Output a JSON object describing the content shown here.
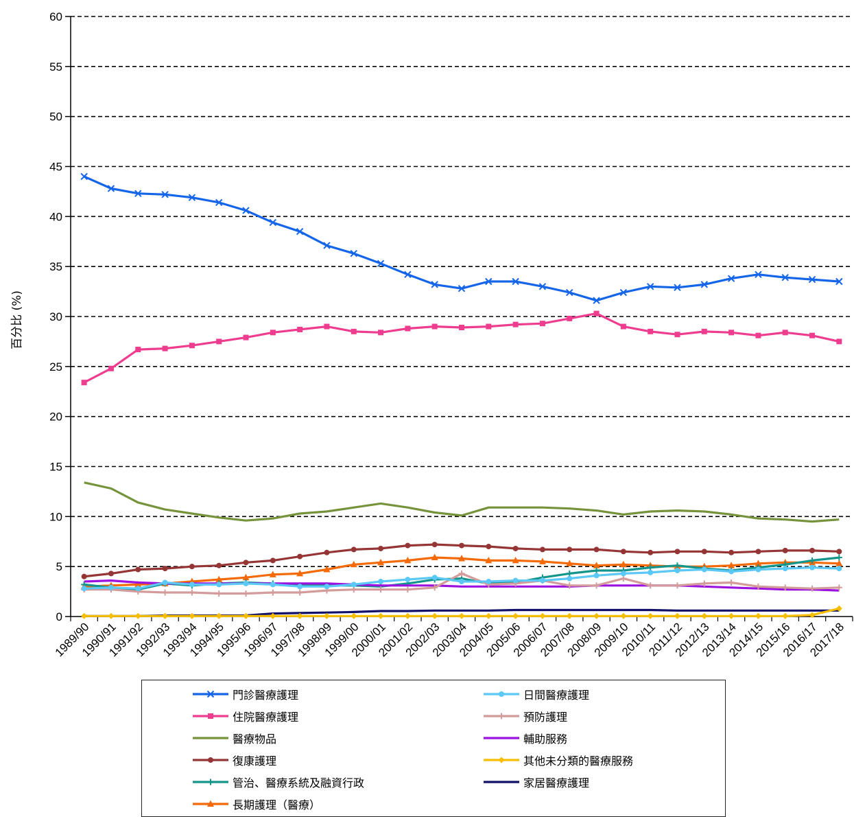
{
  "chart_data": {
    "type": "line",
    "ylabel": "百分比 (%)",
    "xlabel": "",
    "ylim": [
      0,
      60
    ],
    "yticks": [
      0,
      5,
      10,
      15,
      20,
      25,
      30,
      35,
      40,
      45,
      50,
      55,
      60
    ],
    "grid": "horizontal dashed",
    "legend_position": "bottom",
    "categories": [
      "1989/90",
      "1990/91",
      "1991/92",
      "1992/93",
      "1993/94",
      "1994/95",
      "1995/96",
      "1996/97",
      "1997/98",
      "1998/99",
      "1999/00",
      "2000/01",
      "2001/02",
      "2002/03",
      "2003/04",
      "2004/05",
      "2005/06",
      "2006/07",
      "2007/08",
      "2008/09",
      "2009/10",
      "2010/11",
      "2011/12",
      "2012/13",
      "2013/14",
      "2014/15",
      "2015/16",
      "2016/17",
      "2017/18"
    ],
    "series": [
      {
        "name": "門診醫療護理",
        "color": "#1565e8",
        "marker": "x",
        "values": [
          44.0,
          42.8,
          42.3,
          42.2,
          41.9,
          41.4,
          40.6,
          39.4,
          38.5,
          37.1,
          36.3,
          35.3,
          34.2,
          33.2,
          32.8,
          33.5,
          33.5,
          33.0,
          32.4,
          31.6,
          32.4,
          33.0,
          32.9,
          33.2,
          33.8,
          34.2,
          33.9,
          33.7,
          33.5
        ]
      },
      {
        "name": "日間醫療護理",
        "color": "#5bc8f5",
        "marker": "circle",
        "values": [
          2.8,
          2.9,
          2.8,
          3.4,
          3.2,
          3.2,
          3.3,
          3.2,
          3.0,
          3.0,
          3.2,
          3.5,
          3.7,
          3.9,
          3.5,
          3.5,
          3.6,
          3.6,
          3.8,
          4.1,
          4.3,
          4.4,
          4.6,
          4.7,
          4.5,
          4.7,
          4.8,
          4.9,
          4.8
        ]
      },
      {
        "name": "住院醫療護理",
        "color": "#ee3d8f",
        "marker": "square",
        "values": [
          23.4,
          24.8,
          26.7,
          26.8,
          27.1,
          27.5,
          27.9,
          28.4,
          28.7,
          29.0,
          28.5,
          28.4,
          28.8,
          29.0,
          28.9,
          29.0,
          29.2,
          29.3,
          29.8,
          30.3,
          29.0,
          28.5,
          28.2,
          28.5,
          28.4,
          28.1,
          28.4,
          28.1,
          27.5
        ]
      },
      {
        "name": "預防護理",
        "color": "#d49b9b",
        "marker": "plus",
        "values": [
          2.7,
          2.7,
          2.5,
          2.4,
          2.4,
          2.3,
          2.3,
          2.4,
          2.4,
          2.6,
          2.7,
          2.7,
          2.7,
          2.9,
          4.3,
          3.2,
          3.3,
          3.6,
          3.1,
          3.1,
          3.8,
          3.1,
          3.1,
          3.3,
          3.4,
          3.0,
          2.9,
          2.8,
          2.9
        ]
      },
      {
        "name": "醫療物品",
        "color": "#76933c",
        "marker": "none",
        "values": [
          13.4,
          12.8,
          11.4,
          10.7,
          10.3,
          9.9,
          9.6,
          9.8,
          10.3,
          10.5,
          10.9,
          11.3,
          10.9,
          10.4,
          10.1,
          10.9,
          10.9,
          10.9,
          10.8,
          10.6,
          10.2,
          10.5,
          10.6,
          10.5,
          10.2,
          9.8,
          9.7,
          9.5,
          9.7
        ]
      },
      {
        "name": "輔助服務",
        "color": "#9b12e0",
        "marker": "none",
        "values": [
          3.5,
          3.6,
          3.4,
          3.3,
          3.3,
          3.3,
          3.3,
          3.3,
          3.3,
          3.3,
          3.2,
          3.1,
          3.1,
          3.1,
          3.0,
          3.0,
          3.0,
          3.0,
          3.0,
          3.1,
          3.1,
          3.1,
          3.1,
          3.0,
          2.9,
          2.8,
          2.7,
          2.7,
          2.6
        ]
      },
      {
        "name": "復康護理",
        "color": "#953535",
        "marker": "circle",
        "values": [
          4.0,
          4.3,
          4.7,
          4.8,
          5.0,
          5.1,
          5.4,
          5.6,
          6.0,
          6.4,
          6.7,
          6.8,
          7.1,
          7.2,
          7.1,
          7.0,
          6.8,
          6.7,
          6.7,
          6.7,
          6.5,
          6.4,
          6.5,
          6.5,
          6.4,
          6.5,
          6.6,
          6.6,
          6.5
        ]
      },
      {
        "name": "其他未分類的醫療服務",
        "color": "#f7bd00",
        "marker": "diamond",
        "values": [
          0.05,
          0.05,
          0.05,
          0.05,
          0.05,
          0.05,
          0.05,
          0.05,
          0.05,
          0.05,
          0.05,
          0.05,
          0.05,
          0.05,
          0.05,
          0.05,
          0.05,
          0.05,
          0.05,
          0.05,
          0.05,
          0.05,
          0.05,
          0.05,
          0.05,
          0.05,
          0.05,
          0.15,
          0.8
        ]
      },
      {
        "name": "管治、醫療系統及融資行政",
        "color": "#14958c",
        "marker": "plus",
        "values": [
          3.2,
          2.9,
          2.7,
          3.3,
          3.1,
          3.3,
          3.4,
          3.3,
          3.1,
          3.1,
          3.1,
          3.0,
          3.3,
          3.7,
          3.8,
          3.3,
          3.4,
          3.9,
          4.3,
          4.6,
          4.6,
          4.9,
          5.1,
          4.8,
          4.6,
          4.9,
          5.2,
          5.6,
          5.9
        ]
      },
      {
        "name": "家居醫療護理",
        "color": "#10106b",
        "marker": "none",
        "values": [
          0.05,
          0.05,
          0.05,
          0.1,
          0.1,
          0.1,
          0.1,
          0.3,
          0.35,
          0.4,
          0.45,
          0.55,
          0.55,
          0.6,
          0.6,
          0.6,
          0.65,
          0.65,
          0.65,
          0.65,
          0.65,
          0.65,
          0.6,
          0.6,
          0.6,
          0.6,
          0.6,
          0.6,
          0.6
        ]
      },
      {
        "name": "長期護理（醫療）",
        "color": "#f56a08",
        "marker": "triangle",
        "values": [
          3.0,
          3.1,
          3.2,
          3.3,
          3.5,
          3.7,
          3.9,
          4.2,
          4.3,
          4.7,
          5.2,
          5.4,
          5.6,
          5.9,
          5.8,
          5.6,
          5.6,
          5.5,
          5.3,
          5.1,
          5.2,
          5.1,
          5.0,
          5.0,
          5.1,
          5.3,
          5.4,
          5.4,
          5.3
        ]
      }
    ]
  }
}
